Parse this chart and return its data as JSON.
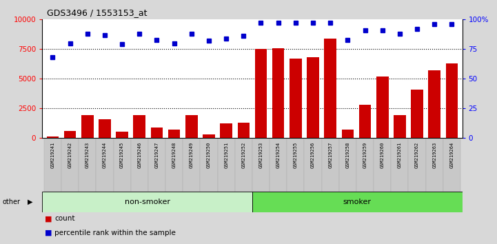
{
  "title": "GDS3496 / 1553153_at",
  "categories": [
    "GSM219241",
    "GSM219242",
    "GSM219243",
    "GSM219244",
    "GSM219245",
    "GSM219246",
    "GSM219247",
    "GSM219248",
    "GSM219249",
    "GSM219250",
    "GSM219251",
    "GSM219252",
    "GSM219253",
    "GSM219254",
    "GSM219255",
    "GSM219256",
    "GSM219257",
    "GSM219258",
    "GSM219259",
    "GSM219260",
    "GSM219261",
    "GSM219262",
    "GSM219263",
    "GSM219264"
  ],
  "bar_values": [
    120,
    600,
    1900,
    1600,
    500,
    1950,
    900,
    700,
    1950,
    300,
    1200,
    1300,
    7500,
    7600,
    6700,
    6800,
    8400,
    700,
    2800,
    5200,
    1900,
    4100,
    5700,
    6300
  ],
  "dot_values_pct": [
    68,
    80,
    88,
    87,
    79,
    88,
    83,
    80,
    88,
    82,
    84,
    86,
    97,
    97,
    97,
    97,
    97,
    83,
    91,
    91,
    88,
    92,
    96,
    96
  ],
  "bar_color": "#cc0000",
  "dot_color": "#0000cc",
  "background_color": "#d8d8d8",
  "plot_bg_color": "#ffffff",
  "yticks_left": [
    0,
    2500,
    5000,
    7500,
    10000
  ],
  "yticks_right": [
    0,
    25,
    50,
    75,
    100
  ],
  "non_smoker_count": 12,
  "ns_color": "#c8f0c8",
  "smoker_color": "#66dd55",
  "legend_count_label": "count",
  "legend_pct_label": "percentile rank within the sample"
}
